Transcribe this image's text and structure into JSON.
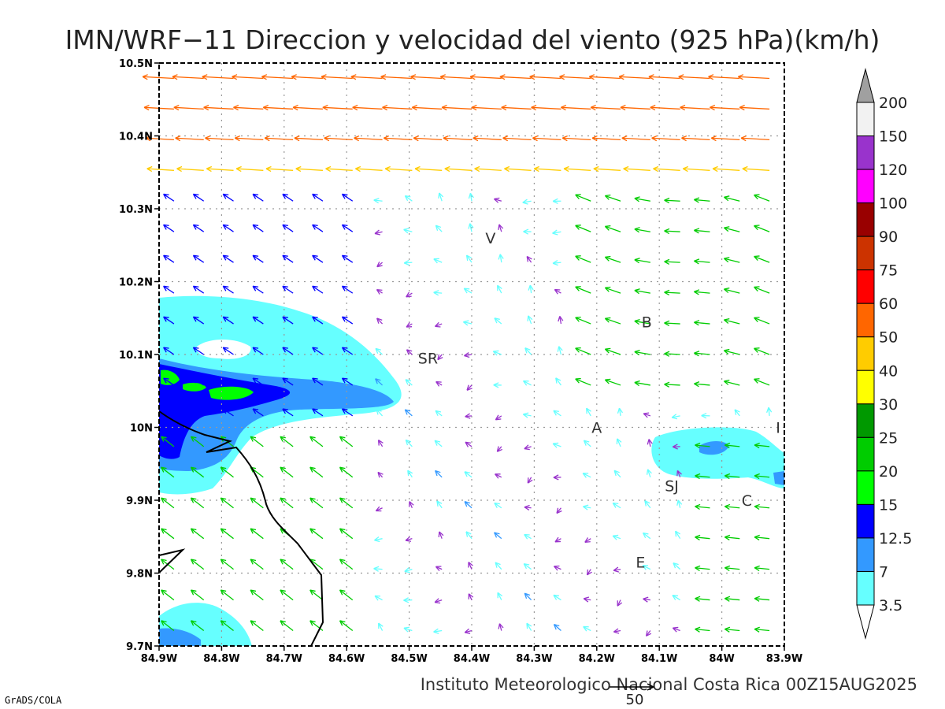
{
  "title": "IMN/WRF−11 Direccion y velocidad del viento (925 hPa)(km/h)",
  "footer": "Instituto Meteorologico Nacional Costa Rica 00Z15AUG2025",
  "credit": "GrADS/COLA",
  "reference_vector_label": "50",
  "map": {
    "lon_range": [
      -84.9,
      -83.9
    ],
    "lat_range": [
      9.7,
      10.5
    ],
    "lon_ticks": [
      {
        "v": -84.9,
        "label": "84.9W"
      },
      {
        "v": -84.8,
        "label": "84.8W"
      },
      {
        "v": -84.7,
        "label": "84.7W"
      },
      {
        "v": -84.6,
        "label": "84.6W"
      },
      {
        "v": -84.5,
        "label": "84.5W"
      },
      {
        "v": -84.4,
        "label": "84.4W"
      },
      {
        "v": -84.3,
        "label": "84.3W"
      },
      {
        "v": -84.2,
        "label": "84.2W"
      },
      {
        "v": -84.1,
        "label": "84.1W"
      },
      {
        "v": -84.0,
        "label": "84W"
      },
      {
        "v": -83.9,
        "label": "83.9W"
      }
    ],
    "lat_ticks": [
      {
        "v": 9.7,
        "label": "9.7N"
      },
      {
        "v": 9.8,
        "label": "9.8N"
      },
      {
        "v": 9.9,
        "label": "9.9N"
      },
      {
        "v": 10.0,
        "label": "10N"
      },
      {
        "v": 10.1,
        "label": "10.1N"
      },
      {
        "v": 10.2,
        "label": "10.2N"
      },
      {
        "v": 10.3,
        "label": "10.3N"
      },
      {
        "v": 10.4,
        "label": "10.4N"
      },
      {
        "v": 10.5,
        "label": "10.5N"
      }
    ],
    "grid": true,
    "places": [
      {
        "name": "V",
        "lon": -84.37,
        "lat": 10.26
      },
      {
        "name": "B",
        "lon": -84.12,
        "lat": 10.145
      },
      {
        "name": "SR",
        "lon": -84.47,
        "lat": 10.095
      },
      {
        "name": "A",
        "lon": -84.2,
        "lat": 10.0
      },
      {
        "name": "I",
        "lon": -83.91,
        "lat": 10.0
      },
      {
        "name": "SJ",
        "lon": -84.08,
        "lat": 9.92
      },
      {
        "name": "C",
        "lon": -83.96,
        "lat": 9.9
      },
      {
        "name": "E",
        "lon": -84.13,
        "lat": 9.815
      }
    ]
  },
  "legend": {
    "labels": [
      "200",
      "150",
      "120",
      "100",
      "90",
      "75",
      "60",
      "50",
      "40",
      "30",
      "25",
      "20",
      "15",
      "12.5",
      "7",
      "3.5"
    ],
    "colors": [
      "#f2f2f2",
      "#9933cc",
      "#ff00ff",
      "#990000",
      "#cc3300",
      "#ff0000",
      "#ff6600",
      "#ffcc00",
      "#ffff00",
      "#009900",
      "#00cc00",
      "#00ff00",
      "#0000ff",
      "#3399ff",
      "#66ffff"
    ],
    "top_arrow_color": "#a0a0a0"
  },
  "shading_colors": {
    "c3_5": "#66ffff",
    "c7": "#3399ff",
    "c12_5": "#0000ff",
    "c15": "#00ff00"
  },
  "coast_color": "#000000"
}
